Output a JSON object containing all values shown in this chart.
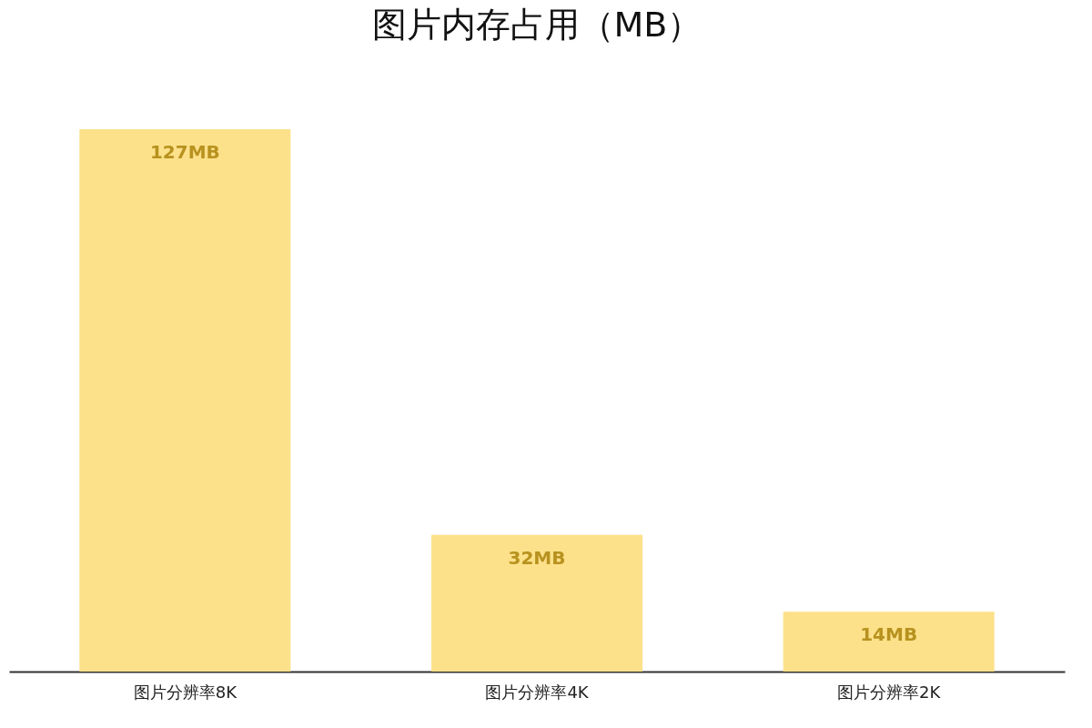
{
  "chart_data": {
    "type": "bar",
    "title": "图片内存占用（MB）",
    "categories": [
      "图片分辨率8K",
      "图片分辨率4K",
      "图片分辨率2K"
    ],
    "values": [
      127,
      32,
      14
    ],
    "value_labels": [
      "127MB",
      "32MB",
      "14MB"
    ],
    "color": "#fde08a"
  }
}
